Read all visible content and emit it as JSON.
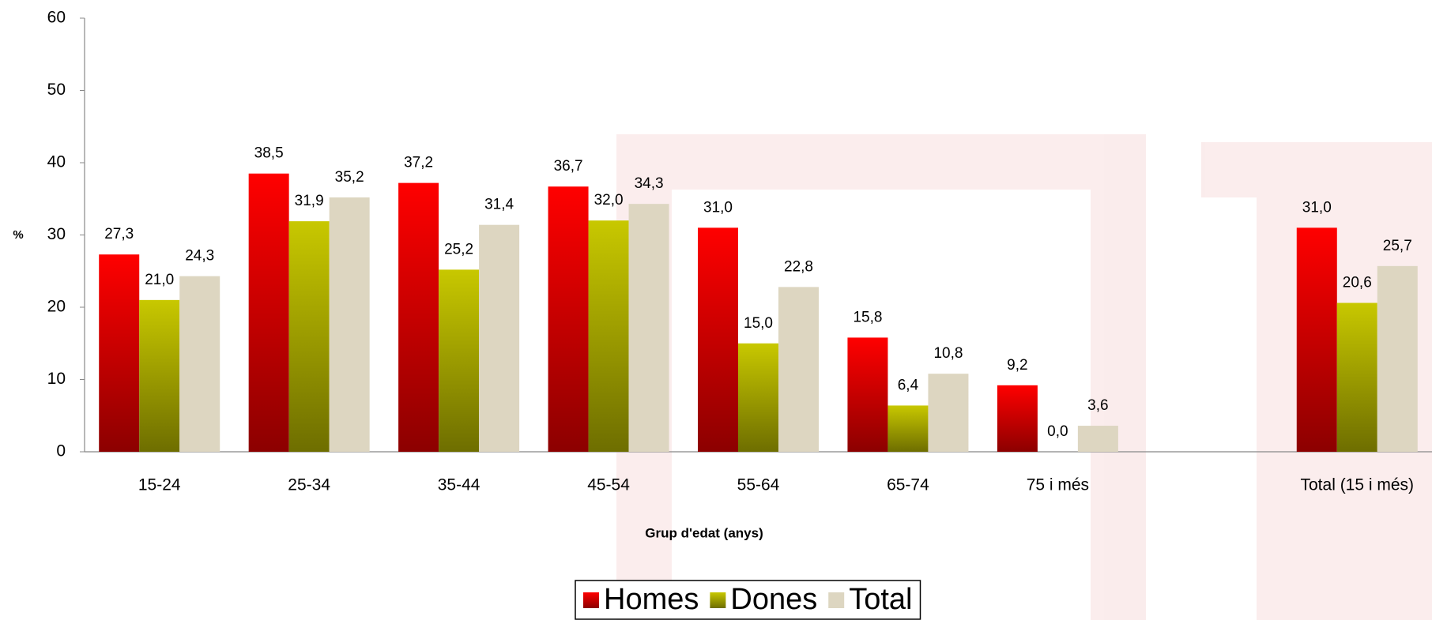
{
  "chart_data": {
    "type": "bar",
    "x_label": "Grup d'edat (anys)",
    "y_label": "%",
    "categories": [
      "15-24",
      "25-34",
      "35-44",
      "45-54",
      "55-64",
      "65-74",
      "75 i més",
      null,
      "Total (15 i més)"
    ],
    "series": [
      {
        "name": "Homes",
        "color": "#ff0000",
        "values": [
          27.3,
          38.5,
          37.2,
          36.7,
          31.0,
          15.8,
          9.2,
          null,
          31.0
        ],
        "value_labels": [
          "27,3",
          "38,5",
          "37,2",
          "36,7",
          "31,0",
          "15,8",
          "9,2",
          null,
          "31,0"
        ]
      },
      {
        "name": "Dones",
        "color": "#c8c800",
        "values": [
          21.0,
          31.9,
          25.2,
          32.0,
          15.0,
          6.4,
          0.0,
          null,
          20.6
        ],
        "value_labels": [
          "21,0",
          "31,9",
          "25,2",
          "32,0",
          "15,0",
          "6,4",
          "0,0",
          null,
          "20,6"
        ]
      },
      {
        "name": "Total",
        "color": "#ddd6c1",
        "values": [
          24.3,
          35.2,
          31.4,
          34.3,
          22.8,
          10.8,
          3.6,
          null,
          25.7
        ],
        "value_labels": [
          "24,3",
          "35,2",
          "31,4",
          "34,3",
          "22,8",
          "10,8",
          "3,6",
          null,
          "25,7"
        ]
      }
    ],
    "ylim": [
      0,
      60
    ],
    "yticks": [
      0,
      10,
      20,
      30,
      40,
      50,
      60
    ],
    "grid": false,
    "legend": "bottom"
  }
}
